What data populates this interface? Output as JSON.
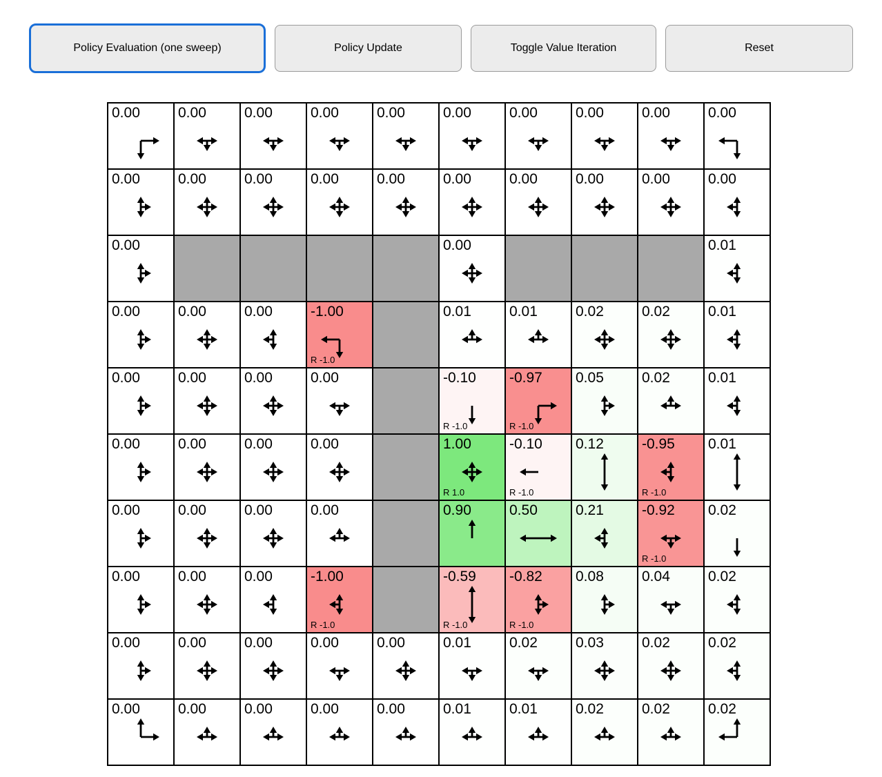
{
  "toolbar": {
    "buttons": [
      {
        "id": "policy-evaluation",
        "label": "Policy Evaluation (one sweep)",
        "active": true
      },
      {
        "id": "policy-update",
        "label": "Policy Update",
        "active": false
      },
      {
        "id": "toggle-value-iteration",
        "label": "Toggle Value Iteration",
        "active": false
      },
      {
        "id": "reset",
        "label": "Reset",
        "active": false
      }
    ]
  },
  "colors": {
    "wall": "#a9a9a9",
    "positive_full": "#7de87d",
    "negative_full": "#f98c8c",
    "active_button_border": "#1a6fd8",
    "arrow": "#000000",
    "cell_border": "#000000"
  },
  "grid": {
    "rows": 10,
    "cols": 10,
    "cells": [
      [
        {
          "value": "0.00",
          "dirs": [
            "right",
            "down"
          ]
        },
        {
          "value": "0.00",
          "dirs": [
            "left",
            "right",
            "down"
          ]
        },
        {
          "value": "0.00",
          "dirs": [
            "left",
            "right",
            "down"
          ]
        },
        {
          "value": "0.00",
          "dirs": [
            "left",
            "right",
            "down"
          ]
        },
        {
          "value": "0.00",
          "dirs": [
            "left",
            "right",
            "down"
          ]
        },
        {
          "value": "0.00",
          "dirs": [
            "left",
            "right",
            "down"
          ]
        },
        {
          "value": "0.00",
          "dirs": [
            "left",
            "right",
            "down"
          ]
        },
        {
          "value": "0.00",
          "dirs": [
            "left",
            "right",
            "down"
          ]
        },
        {
          "value": "0.00",
          "dirs": [
            "left",
            "right",
            "down"
          ]
        },
        {
          "value": "0.00",
          "dirs": [
            "left",
            "down"
          ]
        }
      ],
      [
        {
          "value": "0.00",
          "dirs": [
            "up",
            "right",
            "down"
          ]
        },
        {
          "value": "0.00",
          "dirs": [
            "up",
            "right",
            "down",
            "left"
          ]
        },
        {
          "value": "0.00",
          "dirs": [
            "up",
            "right",
            "down",
            "left"
          ]
        },
        {
          "value": "0.00",
          "dirs": [
            "up",
            "right",
            "down",
            "left"
          ]
        },
        {
          "value": "0.00",
          "dirs": [
            "up",
            "right",
            "down",
            "left"
          ]
        },
        {
          "value": "0.00",
          "dirs": [
            "up",
            "right",
            "down",
            "left"
          ]
        },
        {
          "value": "0.00",
          "dirs": [
            "up",
            "right",
            "down",
            "left"
          ]
        },
        {
          "value": "0.00",
          "dirs": [
            "up",
            "right",
            "down",
            "left"
          ]
        },
        {
          "value": "0.00",
          "dirs": [
            "up",
            "right",
            "down",
            "left"
          ]
        },
        {
          "value": "0.00",
          "dirs": [
            "up",
            "left",
            "down"
          ]
        }
      ],
      [
        {
          "value": "0.00",
          "dirs": [
            "up",
            "right",
            "down"
          ]
        },
        {
          "wall": true
        },
        {
          "wall": true
        },
        {
          "wall": true
        },
        {
          "wall": true
        },
        {
          "value": "0.00",
          "dirs": [
            "up",
            "right",
            "down",
            "left"
          ]
        },
        {
          "wall": true
        },
        {
          "wall": true
        },
        {
          "wall": true
        },
        {
          "value": "0.01",
          "dirs": [
            "up",
            "left",
            "down"
          ]
        }
      ],
      [
        {
          "value": "0.00",
          "dirs": [
            "up",
            "right",
            "down"
          ]
        },
        {
          "value": "0.00",
          "dirs": [
            "up",
            "right",
            "down",
            "left"
          ]
        },
        {
          "value": "0.00",
          "dirs": [
            "up",
            "left",
            "down"
          ]
        },
        {
          "value": "-1.00",
          "dirs": [
            "left",
            "down"
          ],
          "reward": "R -1.0"
        },
        {
          "wall": true
        },
        {
          "value": "0.01",
          "dirs": [
            "up",
            "left",
            "right"
          ]
        },
        {
          "value": "0.01",
          "dirs": [
            "up",
            "left",
            "right"
          ]
        },
        {
          "value": "0.02",
          "dirs": [
            "up",
            "right",
            "down",
            "left"
          ]
        },
        {
          "value": "0.02",
          "dirs": [
            "up",
            "right",
            "down",
            "left"
          ]
        },
        {
          "value": "0.01",
          "dirs": [
            "up",
            "left",
            "down"
          ]
        }
      ],
      [
        {
          "value": "0.00",
          "dirs": [
            "up",
            "right",
            "down"
          ]
        },
        {
          "value": "0.00",
          "dirs": [
            "up",
            "right",
            "down",
            "left"
          ]
        },
        {
          "value": "0.00",
          "dirs": [
            "up",
            "right",
            "down",
            "left"
          ]
        },
        {
          "value": "0.00",
          "dirs": [
            "left",
            "right",
            "down"
          ]
        },
        {
          "wall": true
        },
        {
          "value": "-0.10",
          "dirs": [
            "down"
          ],
          "reward": "R -1.0"
        },
        {
          "value": "-0.97",
          "dirs": [
            "right",
            "down"
          ],
          "reward": "R -1.0"
        },
        {
          "value": "0.05",
          "dirs": [
            "up",
            "right",
            "down"
          ]
        },
        {
          "value": "0.02",
          "dirs": [
            "up",
            "left",
            "right"
          ]
        },
        {
          "value": "0.01",
          "dirs": [
            "up",
            "left",
            "down"
          ]
        }
      ],
      [
        {
          "value": "0.00",
          "dirs": [
            "up",
            "right",
            "down"
          ]
        },
        {
          "value": "0.00",
          "dirs": [
            "up",
            "right",
            "down",
            "left"
          ]
        },
        {
          "value": "0.00",
          "dirs": [
            "up",
            "right",
            "down",
            "left"
          ]
        },
        {
          "value": "0.00",
          "dirs": [
            "up",
            "right",
            "down",
            "left"
          ]
        },
        {
          "wall": true
        },
        {
          "value": "1.00",
          "dirs": [
            "up",
            "right",
            "down",
            "left"
          ],
          "reward": "R 1.0"
        },
        {
          "value": "-0.10",
          "dirs": [
            "left"
          ],
          "reward": "R -1.0"
        },
        {
          "value": "0.12",
          "dirs": [
            "up",
            "down"
          ]
        },
        {
          "value": "-0.95",
          "dirs": [
            "up",
            "left",
            "down"
          ],
          "reward": "R -1.0"
        },
        {
          "value": "0.01",
          "dirs": [
            "up",
            "down"
          ]
        }
      ],
      [
        {
          "value": "0.00",
          "dirs": [
            "up",
            "right",
            "down"
          ]
        },
        {
          "value": "0.00",
          "dirs": [
            "up",
            "right",
            "down",
            "left"
          ]
        },
        {
          "value": "0.00",
          "dirs": [
            "up",
            "right",
            "down",
            "left"
          ]
        },
        {
          "value": "0.00",
          "dirs": [
            "up",
            "left",
            "right"
          ]
        },
        {
          "wall": true
        },
        {
          "value": "0.90",
          "dirs": [
            "up"
          ]
        },
        {
          "value": "0.50",
          "dirs": [
            "left",
            "right"
          ]
        },
        {
          "value": "0.21",
          "dirs": [
            "up",
            "left",
            "down"
          ]
        },
        {
          "value": "-0.92",
          "dirs": [
            "left",
            "right",
            "down"
          ],
          "reward": "R -1.0"
        },
        {
          "value": "0.02",
          "dirs": [
            "down"
          ]
        }
      ],
      [
        {
          "value": "0.00",
          "dirs": [
            "up",
            "right",
            "down"
          ]
        },
        {
          "value": "0.00",
          "dirs": [
            "up",
            "right",
            "down",
            "left"
          ]
        },
        {
          "value": "0.00",
          "dirs": [
            "up",
            "left",
            "down"
          ]
        },
        {
          "value": "-1.00",
          "dirs": [
            "up",
            "left",
            "down"
          ],
          "reward": "R -1.0"
        },
        {
          "wall": true
        },
        {
          "value": "-0.59",
          "dirs": [
            "up",
            "down"
          ],
          "reward": "R -1.0"
        },
        {
          "value": "-0.82",
          "dirs": [
            "up",
            "right",
            "down"
          ],
          "reward": "R -1.0"
        },
        {
          "value": "0.08",
          "dirs": [
            "up",
            "right",
            "down"
          ]
        },
        {
          "value": "0.04",
          "dirs": [
            "left",
            "right",
            "down"
          ]
        },
        {
          "value": "0.02",
          "dirs": [
            "up",
            "left",
            "down"
          ]
        }
      ],
      [
        {
          "value": "0.00",
          "dirs": [
            "up",
            "right",
            "down"
          ]
        },
        {
          "value": "0.00",
          "dirs": [
            "up",
            "right",
            "down",
            "left"
          ]
        },
        {
          "value": "0.00",
          "dirs": [
            "up",
            "right",
            "down",
            "left"
          ]
        },
        {
          "value": "0.00",
          "dirs": [
            "left",
            "right",
            "down"
          ]
        },
        {
          "value": "0.00",
          "dirs": [
            "up",
            "right",
            "down",
            "left"
          ]
        },
        {
          "value": "0.01",
          "dirs": [
            "left",
            "right",
            "down"
          ]
        },
        {
          "value": "0.02",
          "dirs": [
            "left",
            "right",
            "down"
          ]
        },
        {
          "value": "0.03",
          "dirs": [
            "up",
            "right",
            "down",
            "left"
          ]
        },
        {
          "value": "0.02",
          "dirs": [
            "up",
            "right",
            "down",
            "left"
          ]
        },
        {
          "value": "0.02",
          "dirs": [
            "up",
            "left",
            "down"
          ]
        }
      ],
      [
        {
          "value": "0.00",
          "dirs": [
            "up",
            "right"
          ]
        },
        {
          "value": "0.00",
          "dirs": [
            "up",
            "left",
            "right"
          ]
        },
        {
          "value": "0.00",
          "dirs": [
            "up",
            "left",
            "right"
          ]
        },
        {
          "value": "0.00",
          "dirs": [
            "up",
            "left",
            "right"
          ]
        },
        {
          "value": "0.00",
          "dirs": [
            "up",
            "left",
            "right"
          ]
        },
        {
          "value": "0.01",
          "dirs": [
            "up",
            "left",
            "right"
          ]
        },
        {
          "value": "0.01",
          "dirs": [
            "up",
            "left",
            "right"
          ]
        },
        {
          "value": "0.02",
          "dirs": [
            "up",
            "left",
            "right"
          ]
        },
        {
          "value": "0.02",
          "dirs": [
            "up",
            "left",
            "right"
          ]
        },
        {
          "value": "0.02",
          "dirs": [
            "up",
            "left"
          ]
        }
      ]
    ]
  }
}
